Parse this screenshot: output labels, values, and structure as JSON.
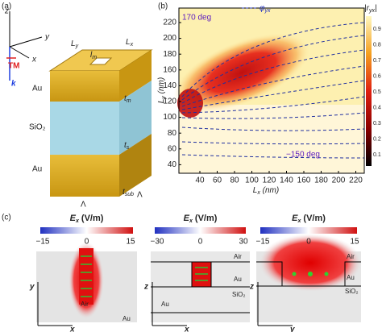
{
  "panel_a": {
    "label": "(a)",
    "axes": {
      "z": "z",
      "y": "y",
      "x": "x",
      "polarization": "TM",
      "wave": "k"
    },
    "dims": {
      "Ly": [
        "L",
        "y"
      ],
      "Lx": [
        "L",
        "x"
      ],
      "lm": [
        "l",
        "m"
      ],
      "tm": [
        "t",
        "m"
      ],
      "ts": [
        "t",
        "s"
      ],
      "tsub": [
        "t",
        "sub"
      ]
    },
    "layers": [
      "Au",
      "SiO₂",
      "Au"
    ],
    "period": [
      "Λ",
      "Λ"
    ]
  },
  "panel_b": {
    "label": "(b)",
    "legend": [
      "φ",
      "yx"
    ],
    "colorbar_title": [
      "|r",
      "yx",
      "|"
    ],
    "annotations": [
      "170 deg",
      "−150 deg"
    ],
    "xlabel": [
      "L",
      "x",
      " (nm)"
    ],
    "ylabel": [
      "L",
      "y",
      " (nm)"
    ],
    "xticks": [
      40,
      60,
      80,
      100,
      120,
      140,
      160,
      180,
      200,
      220
    ],
    "yticks": [
      220,
      200,
      180,
      160,
      140,
      120,
      100,
      80,
      60,
      40
    ],
    "cticks": [
      0.9,
      0.8,
      0.7,
      0.6,
      0.5,
      0.4,
      0.3,
      0.2,
      0.1
    ]
  },
  "panel_c": {
    "label": "(c)",
    "maps": [
      {
        "title": [
          "E",
          "x",
          " (V/m)"
        ],
        "ticks": [
          "−15",
          "0",
          "15"
        ],
        "axes": [
          "y",
          "x"
        ],
        "labels": [
          "Air",
          "Au"
        ]
      },
      {
        "title": [
          "E",
          "x",
          " (V/m)"
        ],
        "ticks": [
          "−30",
          "0",
          "30"
        ],
        "axes": [
          "z",
          "x"
        ],
        "labels": [
          "Air",
          "Au",
          "SiO₂",
          "Au"
        ]
      },
      {
        "title": [
          "E",
          "x",
          " (V/m)"
        ],
        "ticks": [
          "−15",
          "0",
          "15"
        ],
        "axes": [
          "z",
          "y"
        ],
        "labels": [
          "Air",
          "Au",
          "SiO₂"
        ]
      }
    ]
  }
}
